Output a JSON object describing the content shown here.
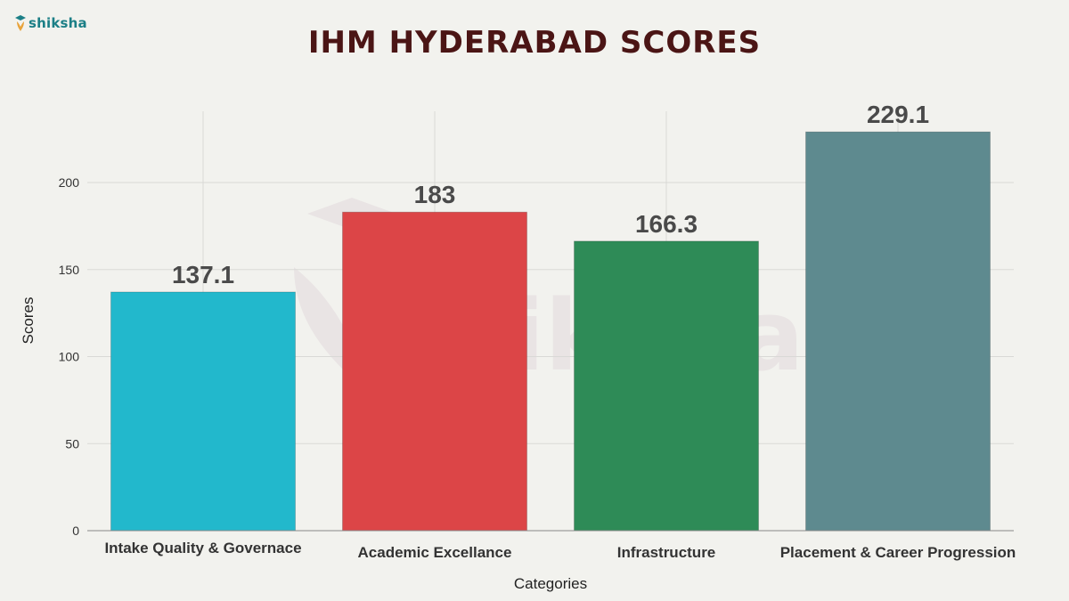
{
  "brand": {
    "logo_text": "shiksha",
    "logo_icon": "shiksha-logo-icon",
    "watermark_text": "shiksha"
  },
  "colors": {
    "title": "#4b1515",
    "background": "#f2f2ee",
    "grid": "#d9d9d6"
  },
  "chart_data": {
    "type": "bar",
    "title": "IHM HYDERABAD SCORES",
    "xlabel": "Categories",
    "ylabel": "Scores",
    "categories": [
      "Intake Quality & Governace",
      "Academic Excellance",
      "Infrastructure",
      "Placement & Career Progression"
    ],
    "values": [
      137.1,
      183,
      166.3,
      229.1
    ],
    "value_labels": [
      "137.1",
      "183",
      "166.3",
      "229.1"
    ],
    "colors": [
      "#22b8cc",
      "#dc4547",
      "#2e8b57",
      "#5e8a8f"
    ],
    "y_ticks": [
      0,
      50,
      100,
      150,
      200
    ],
    "ylim": [
      0,
      240
    ],
    "grid": true,
    "legend": false
  }
}
